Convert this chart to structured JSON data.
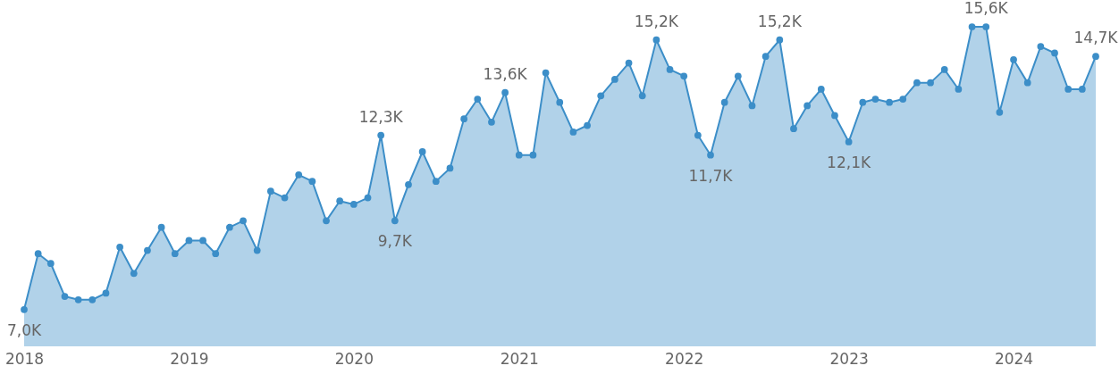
{
  "chart_data": {
    "type": "area",
    "x": [
      "2018-01",
      "2018-02",
      "2018-03",
      "2018-04",
      "2018-05",
      "2018-06",
      "2018-07",
      "2018-08",
      "2018-09",
      "2018-10",
      "2018-11",
      "2018-12",
      "2019-01",
      "2019-02",
      "2019-03",
      "2019-04",
      "2019-05",
      "2019-06",
      "2019-07",
      "2019-08",
      "2019-09",
      "2019-10",
      "2019-11",
      "2019-12",
      "2020-01",
      "2020-02",
      "2020-03",
      "2020-04",
      "2020-05",
      "2020-06",
      "2020-07",
      "2020-08",
      "2020-09",
      "2020-10",
      "2020-11",
      "2020-12",
      "2021-01",
      "2021-02",
      "2021-03",
      "2021-04",
      "2021-05",
      "2021-06",
      "2021-07",
      "2021-08",
      "2021-09",
      "2021-10",
      "2021-11",
      "2021-12",
      "2022-01",
      "2022-02",
      "2022-03",
      "2022-04",
      "2022-05",
      "2022-06",
      "2022-07",
      "2022-08",
      "2022-09",
      "2022-10",
      "2022-11",
      "2022-12",
      "2023-01",
      "2023-02",
      "2023-03",
      "2023-04",
      "2023-05",
      "2023-06",
      "2023-07",
      "2023-08",
      "2023-09",
      "2023-10",
      "2023-11",
      "2023-12",
      "2024-01",
      "2024-02",
      "2024-03",
      "2024-04",
      "2024-05",
      "2024-06",
      "2024-07"
    ],
    "series": [
      {
        "color": "#3c8ec8",
        "values": [
          7.0,
          8.7,
          8.4,
          7.4,
          7.3,
          7.3,
          7.5,
          8.9,
          8.1,
          8.8,
          9.5,
          8.7,
          9.1,
          9.1,
          8.7,
          9.5,
          9.7,
          8.8,
          10.6,
          10.4,
          11.1,
          10.9,
          9.7,
          10.3,
          10.2,
          10.4,
          12.3,
          9.7,
          10.8,
          11.8,
          10.9,
          11.3,
          12.8,
          13.4,
          12.7,
          13.6,
          11.7,
          11.7,
          14.2,
          13.3,
          12.4,
          12.6,
          13.5,
          14.0,
          14.5,
          13.5,
          15.2,
          14.3,
          14.1,
          12.3,
          11.7,
          13.3,
          14.1,
          13.2,
          14.7,
          15.2,
          12.5,
          13.2,
          13.7,
          12.9,
          12.1,
          13.3,
          13.4,
          13.3,
          13.4,
          13.9,
          13.9,
          14.3,
          13.7,
          15.6,
          15.6,
          13.0,
          14.6,
          13.9,
          15.0,
          14.8,
          13.7,
          13.7,
          14.7
        ],
        "value_labels": [
          "7,0K",
          null,
          null,
          null,
          null,
          null,
          null,
          null,
          null,
          null,
          null,
          null,
          null,
          null,
          null,
          null,
          null,
          null,
          null,
          null,
          null,
          null,
          null,
          null,
          null,
          null,
          "12,3K",
          "9,7K",
          null,
          null,
          null,
          null,
          null,
          null,
          null,
          "13,6K",
          null,
          null,
          null,
          null,
          null,
          null,
          null,
          null,
          null,
          null,
          "15,2K",
          null,
          null,
          null,
          "11,7K",
          null,
          null,
          null,
          null,
          "15,2K",
          null,
          null,
          null,
          null,
          "12,1K",
          null,
          null,
          null,
          null,
          null,
          null,
          null,
          null,
          null,
          "15,6K",
          null,
          null,
          null,
          null,
          null,
          null,
          null,
          "14,7K"
        ]
      }
    ],
    "xlim": [
      "2018-01",
      "2024-07"
    ],
    "xticks": [
      "2018",
      "2019",
      "2020",
      "2021",
      "2022",
      "2023",
      "2024"
    ],
    "tick_labels": "x",
    "marker": "circle"
  }
}
